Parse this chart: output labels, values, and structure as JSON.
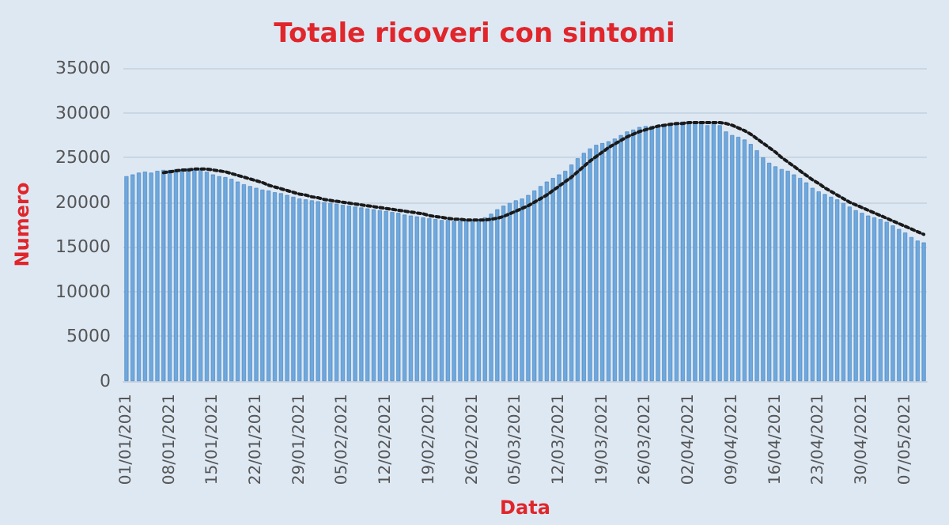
{
  "chart_data": {
    "type": "bar",
    "title": "Totale ricoveri con sintomi",
    "xlabel": "Data",
    "ylabel": "Numero",
    "categories": [
      "01/01/2021",
      null,
      null,
      null,
      null,
      null,
      null,
      "08/01/2021",
      null,
      null,
      null,
      null,
      null,
      null,
      "15/01/2021",
      null,
      null,
      null,
      null,
      null,
      null,
      "22/01/2021",
      null,
      null,
      null,
      null,
      null,
      null,
      "29/01/2021",
      null,
      null,
      null,
      null,
      null,
      null,
      "05/02/2021",
      null,
      null,
      null,
      null,
      null,
      null,
      "12/02/2021",
      null,
      null,
      null,
      null,
      null,
      null,
      "19/02/2021",
      null,
      null,
      null,
      null,
      null,
      null,
      "26/02/2021",
      null,
      null,
      null,
      null,
      null,
      null,
      "05/03/2021",
      null,
      null,
      null,
      null,
      null,
      null,
      "12/03/2021",
      null,
      null,
      null,
      null,
      null,
      null,
      "19/03/2021",
      null,
      null,
      null,
      null,
      null,
      null,
      "26/03/2021",
      null,
      null,
      null,
      null,
      null,
      null,
      "02/04/2021",
      null,
      null,
      null,
      null,
      null,
      null,
      "09/04/2021",
      null,
      null,
      null,
      null,
      null,
      null,
      "16/04/2021",
      null,
      null,
      null,
      null,
      null,
      null,
      "23/04/2021",
      null,
      null,
      null,
      null,
      null,
      null,
      "30/04/2021",
      null,
      null,
      null,
      null,
      null,
      null,
      "07/05/2021",
      null,
      null,
      null
    ],
    "series": [
      {
        "color": "#6fa8dc",
        "values": [
          22900,
          23100,
          23300,
          23400,
          23300,
          23500,
          23600,
          23600,
          23700,
          23700,
          23800,
          23700,
          23600,
          23400,
          23100,
          22900,
          22800,
          22600,
          22300,
          22000,
          21800,
          21600,
          21400,
          21300,
          21100,
          21000,
          20800,
          20600,
          20400,
          20300,
          20200,
          20100,
          20000,
          19900,
          19800,
          19700,
          19600,
          19500,
          19400,
          19300,
          19200,
          19100,
          19000,
          18900,
          18800,
          18600,
          18500,
          18400,
          18300,
          18200,
          18100,
          18000,
          18000,
          17900,
          17900,
          18000,
          18000,
          18100,
          18300,
          18700,
          19200,
          19600,
          19900,
          20200,
          20400,
          20800,
          21300,
          21800,
          22300,
          22700,
          23100,
          23500,
          24200,
          24900,
          25500,
          26000,
          26400,
          26600,
          26800,
          27100,
          27500,
          27900,
          28100,
          28400,
          28500,
          28500,
          28600,
          28700,
          28800,
          28900,
          29000,
          29000,
          29000,
          28800,
          28600,
          29000,
          28600,
          27900,
          27500,
          27300,
          27000,
          26500,
          25800,
          25000,
          24400,
          24000,
          23700,
          23500,
          23100,
          22700,
          22200,
          21600,
          21200,
          20900,
          20600,
          20300,
          19900,
          19500,
          19100,
          18800,
          18500,
          18300,
          18100,
          17800,
          17400,
          17000,
          16600,
          16100,
          15700,
          15500
        ]
      },
      {
        "type": "line",
        "color": "#1a1a1a",
        "marker": "none",
        "line_style": "dotted",
        "values": [
          null,
          null,
          null,
          null,
          null,
          null,
          23300,
          23400,
          23500,
          23600,
          23600,
          23700,
          23700,
          23700,
          23600,
          23500,
          23400,
          23200,
          23000,
          22800,
          22600,
          22400,
          22200,
          21900,
          21700,
          21500,
          21300,
          21100,
          20900,
          20800,
          20600,
          20500,
          20300,
          20200,
          20100,
          20000,
          19900,
          19800,
          19700,
          19600,
          19500,
          19400,
          19300,
          19200,
          19100,
          19000,
          18900,
          18800,
          18700,
          18500,
          18400,
          18300,
          18200,
          18100,
          18100,
          18000,
          18000,
          18000,
          18000,
          18100,
          18200,
          18400,
          18700,
          19000,
          19300,
          19600,
          20000,
          20400,
          20800,
          21300,
          21800,
          22300,
          22800,
          23400,
          24000,
          24600,
          25100,
          25600,
          26100,
          26500,
          26900,
          27300,
          27600,
          27900,
          28100,
          28300,
          28500,
          28600,
          28700,
          28800,
          28800,
          28900,
          28900,
          28900,
          28900,
          28900,
          28900,
          28800,
          28600,
          28300,
          28000,
          27600,
          27100,
          26600,
          26100,
          25600,
          25000,
          24500,
          24000,
          23500,
          23000,
          22500,
          22100,
          21600,
          21200,
          20800,
          20400,
          20000,
          19700,
          19400,
          19100,
          18800,
          18500,
          18200,
          17900,
          17600,
          17300,
          17000,
          16700,
          16400
        ]
      }
    ],
    "ylim": [
      0,
      35000
    ],
    "yticks": [
      0,
      5000,
      10000,
      15000,
      20000,
      25000,
      30000,
      35000
    ],
    "grid": "y"
  }
}
